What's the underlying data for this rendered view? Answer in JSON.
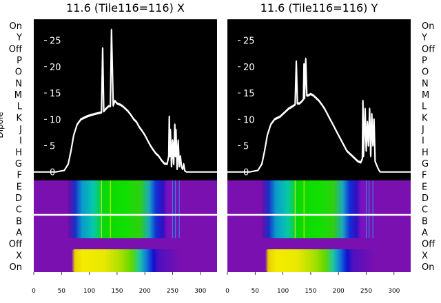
{
  "chart_data": [
    {
      "type": "line",
      "title": "11.6 (Tile116=116) X",
      "ylabel": "Dipole",
      "xlim": [
        0,
        330
      ],
      "ylim": [
        -19,
        29
      ],
      "x_ticks": [
        0,
        50,
        100,
        150,
        200,
        250,
        300
      ],
      "y_ticks": [
        0,
        5,
        10,
        15,
        20,
        25
      ],
      "row_labels": [
        "On",
        "Y",
        "Off",
        "P",
        "O",
        "N",
        "M",
        "L",
        "K",
        "J",
        "I",
        "H",
        "G",
        "F",
        "E",
        "D",
        "C",
        "B",
        "A",
        "Off",
        "X",
        "On"
      ],
      "background": "waterfall heatmap (purple-blue-green-yellow) over dipole rows, black above",
      "series": [
        {
          "color": "#ffffff",
          "x": [
            0,
            40,
            55,
            62,
            67,
            72,
            78,
            85,
            95,
            100,
            110,
            118,
            122,
            124,
            126,
            130,
            135,
            138,
            140,
            143,
            146,
            150,
            155,
            160,
            165,
            170,
            175,
            180,
            185,
            190,
            195,
            200,
            205,
            210,
            215,
            220,
            225,
            230,
            235,
            240,
            243,
            244,
            245,
            246,
            248,
            250,
            252,
            254,
            255,
            256,
            258,
            260,
            262,
            264,
            266,
            268,
            270,
            272,
            275,
            290,
            330
          ],
          "y": [
            0,
            0,
            0.3,
            1.5,
            4,
            7,
            9,
            10,
            10.5,
            10.7,
            11,
            11.2,
            11.3,
            23.5,
            11.5,
            12,
            12.5,
            12.5,
            27,
            12.6,
            13.5,
            13,
            12.8,
            12.5,
            12,
            11.5,
            10.8,
            10,
            9.5,
            8.5,
            7.8,
            7,
            6,
            5,
            4.2,
            3.5,
            3,
            2.2,
            1.6,
            1.5,
            3,
            10.5,
            3,
            8,
            1,
            6,
            1.5,
            9,
            3,
            8,
            0.5,
            6,
            1,
            3,
            1,
            0.5,
            1.5,
            0.2,
            0,
            0,
            0
          ]
        }
      ]
    },
    {
      "type": "line",
      "title": "11.6 (Tile116=116) Y",
      "xlim": [
        0,
        330
      ],
      "ylim": [
        -19,
        29
      ],
      "x_ticks": [
        0,
        50,
        100,
        150,
        200,
        250,
        300
      ],
      "y_ticks": [
        0,
        5,
        10,
        15,
        20,
        25
      ],
      "row_labels": [
        "On",
        "Y",
        "Off",
        "P",
        "O",
        "N",
        "M",
        "L",
        "K",
        "J",
        "I",
        "H",
        "G",
        "F",
        "E",
        "D",
        "C",
        "B",
        "A",
        "Off",
        "X",
        "On"
      ],
      "background": "waterfall heatmap (purple-blue-green-yellow) over dipole rows, black above",
      "series": [
        {
          "color": "#ffffff",
          "x": [
            0,
            40,
            55,
            62,
            67,
            72,
            78,
            85,
            95,
            100,
            110,
            118,
            122,
            124,
            126,
            130,
            135,
            137,
            138,
            139,
            141,
            143,
            145,
            150,
            155,
            160,
            165,
            170,
            175,
            180,
            185,
            190,
            195,
            200,
            205,
            210,
            215,
            220,
            225,
            230,
            235,
            240,
            243,
            244,
            245,
            248,
            250,
            252,
            254,
            256,
            258,
            260,
            262,
            264,
            266,
            268,
            270,
            272,
            275,
            290,
            330
          ],
          "y": [
            0,
            0,
            0.3,
            1.5,
            4,
            7,
            9,
            10,
            10.5,
            11,
            12,
            12.5,
            12.8,
            21,
            13,
            13,
            13.5,
            13.8,
            20.5,
            14,
            21.5,
            14.5,
            14.5,
            14.8,
            14.5,
            14,
            13.5,
            12.8,
            12,
            11,
            10,
            9,
            8,
            7,
            6,
            5,
            4,
            3.5,
            3,
            2.5,
            2,
            1.8,
            2.5,
            13.5,
            3,
            12,
            4,
            9.5,
            5,
            12,
            3,
            11,
            5,
            10,
            2,
            1.5,
            1,
            0.5,
            0,
            0,
            0
          ]
        }
      ]
    }
  ]
}
